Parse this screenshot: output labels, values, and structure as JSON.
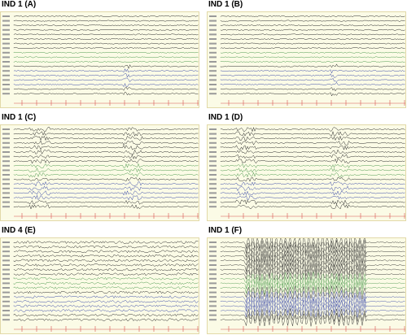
{
  "panels": [
    {
      "title": "IND 1 (A)",
      "pattern": "background"
    },
    {
      "title": "IND 1 (B)",
      "pattern": "background"
    },
    {
      "title": "IND 1 (C)",
      "pattern": "discharges"
    },
    {
      "title": "IND 1 (D)",
      "pattern": "discharges"
    },
    {
      "title": "IND 4 (E)",
      "pattern": "diffuse"
    },
    {
      "title": "IND 1 (F)",
      "pattern": "seizure"
    }
  ],
  "colors": {
    "background": "#fbfbe6",
    "trace_black": "#2b2b2b",
    "trace_green": "#4e9a4e",
    "trace_blue": "#3b4aa8",
    "label": "#b08a3a",
    "marker": "#d9534f"
  }
}
